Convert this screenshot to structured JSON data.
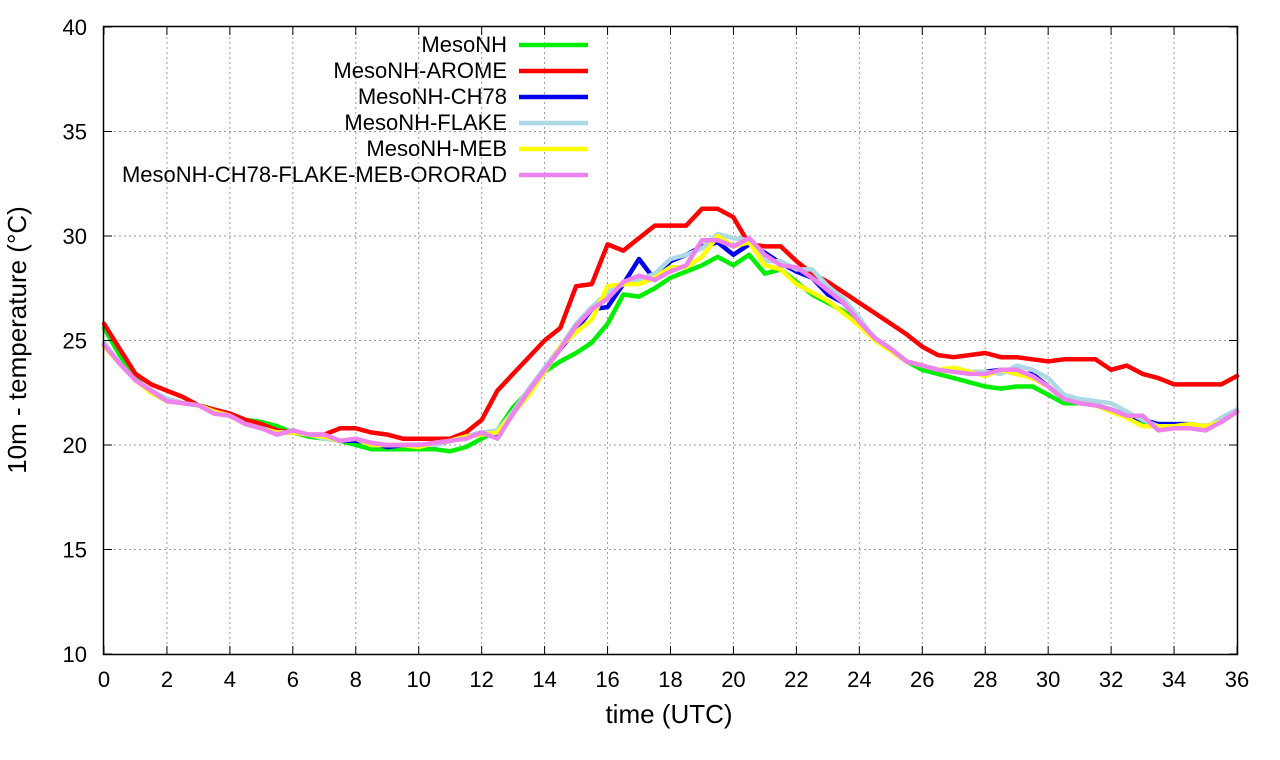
{
  "chart_data": {
    "type": "line",
    "title": "",
    "xlabel": "time (UTC)",
    "ylabel": "10m - temperature (°C)",
    "xlim": [
      0,
      36
    ],
    "ylim": [
      10,
      40
    ],
    "xticks": [
      0,
      2,
      4,
      6,
      8,
      10,
      12,
      14,
      16,
      18,
      20,
      22,
      24,
      26,
      28,
      30,
      32,
      34,
      36
    ],
    "yticks": [
      10,
      15,
      20,
      25,
      30,
      35,
      40
    ],
    "grid": true,
    "legend_position": "top-left",
    "x": [
      0,
      0.5,
      1,
      1.5,
      2,
      2.5,
      3,
      3.5,
      4,
      4.5,
      5,
      5.5,
      6,
      6.5,
      7,
      7.5,
      8,
      8.5,
      9,
      9.5,
      10,
      10.5,
      11,
      11.5,
      12,
      12.5,
      13,
      13.5,
      14,
      14.5,
      15,
      15.5,
      16,
      16.5,
      17,
      17.5,
      18,
      18.5,
      19,
      19.5,
      20,
      20.5,
      21,
      21.5,
      22,
      22.5,
      23,
      23.5,
      24,
      24.5,
      25,
      25.5,
      26,
      26.5,
      27,
      27.5,
      28,
      28.5,
      29,
      29.5,
      30,
      30.5,
      31,
      31.5,
      32,
      32.5,
      33,
      33.5,
      34,
      34.5,
      35,
      35.5,
      36
    ],
    "series": [
      {
        "name": "MesoNH",
        "color": "#00ee00",
        "values": [
          25.6,
          24.3,
          23.2,
          22.5,
          22.1,
          22.0,
          21.9,
          21.7,
          21.5,
          21.2,
          21.1,
          20.9,
          20.6,
          20.4,
          20.3,
          20.2,
          20.0,
          19.8,
          19.8,
          19.8,
          19.8,
          19.8,
          19.7,
          19.9,
          20.3,
          20.7,
          21.8,
          22.6,
          23.5,
          24.0,
          24.4,
          24.9,
          25.8,
          27.2,
          27.1,
          27.5,
          28.0,
          28.3,
          28.6,
          29.0,
          28.6,
          29.1,
          28.2,
          28.4,
          27.8,
          27.2,
          26.8,
          26.4,
          25.8,
          25.0,
          24.5,
          24.0,
          23.6,
          23.4,
          23.2,
          23.0,
          22.8,
          22.7,
          22.8,
          22.8,
          22.4,
          22.0,
          22.0,
          21.9,
          21.7,
          21.3,
          21.1,
          21.0,
          21.0,
          21.0,
          20.8,
          21.1,
          21.6
        ]
      },
      {
        "name": "MesoNH-AROME",
        "color": "#ff0000",
        "values": [
          25.8,
          24.6,
          23.4,
          22.9,
          22.6,
          22.3,
          21.9,
          21.7,
          21.5,
          21.2,
          21.0,
          20.7,
          20.6,
          20.5,
          20.5,
          20.8,
          20.8,
          20.6,
          20.5,
          20.3,
          20.3,
          20.3,
          20.3,
          20.6,
          21.2,
          22.6,
          23.4,
          24.2,
          25.0,
          25.6,
          27.6,
          27.7,
          29.6,
          29.3,
          29.9,
          30.5,
          30.5,
          30.5,
          31.3,
          31.3,
          30.9,
          29.6,
          29.5,
          29.5,
          28.8,
          28.2,
          27.8,
          27.3,
          26.8,
          26.3,
          25.8,
          25.3,
          24.7,
          24.3,
          24.2,
          24.3,
          24.4,
          24.2,
          24.2,
          24.1,
          24.0,
          24.1,
          24.1,
          24.1,
          23.6,
          23.8,
          23.4,
          23.2,
          22.9,
          22.9,
          22.9,
          22.9,
          23.3
        ]
      },
      {
        "name": "MesoNH-CH78",
        "color": "#0000ee",
        "values": [
          24.8,
          23.9,
          23.1,
          22.6,
          22.2,
          22.0,
          21.9,
          21.6,
          21.4,
          21.0,
          20.8,
          20.6,
          20.6,
          20.5,
          20.4,
          20.2,
          20.2,
          20.1,
          19.9,
          20.0,
          20.0,
          20.0,
          20.2,
          20.4,
          20.6,
          20.4,
          21.5,
          22.5,
          23.6,
          24.6,
          25.5,
          26.5,
          26.6,
          27.7,
          28.9,
          27.9,
          28.8,
          29.1,
          29.5,
          29.7,
          29.1,
          29.6,
          29.2,
          28.7,
          28.3,
          28.0,
          27.2,
          26.8,
          25.9,
          25.1,
          24.6,
          24.0,
          23.8,
          23.6,
          23.6,
          23.5,
          23.5,
          23.6,
          23.4,
          23.4,
          22.8,
          22.2,
          22.0,
          21.9,
          21.7,
          21.4,
          21.2,
          21.0,
          21.0,
          21.0,
          20.9,
          21.1,
          21.6
        ]
      },
      {
        "name": "MesoNH-FLAKE",
        "color": "#add8e6",
        "values": [
          24.9,
          23.9,
          23.1,
          22.6,
          22.2,
          22.0,
          21.9,
          21.6,
          21.4,
          21.0,
          20.8,
          20.6,
          20.6,
          20.5,
          20.3,
          20.2,
          20.3,
          20.0,
          20.0,
          20.0,
          20.0,
          20.0,
          20.2,
          20.4,
          20.6,
          20.7,
          21.6,
          22.7,
          23.7,
          24.7,
          25.8,
          26.6,
          27.3,
          27.7,
          27.9,
          28.2,
          28.9,
          29.1,
          29.4,
          30.1,
          29.9,
          29.8,
          28.8,
          28.8,
          28.4,
          28.4,
          27.6,
          27.0,
          26.1,
          25.0,
          24.6,
          24.0,
          23.8,
          23.6,
          23.6,
          23.5,
          23.5,
          23.4,
          23.8,
          23.6,
          23.2,
          22.4,
          22.2,
          22.1,
          22.0,
          21.6,
          21.2,
          20.9,
          20.9,
          20.9,
          20.8,
          21.3,
          21.7
        ]
      },
      {
        "name": "MesoNH-MEB",
        "color": "#ffff00",
        "values": [
          24.7,
          23.9,
          23.1,
          22.5,
          22.1,
          22.0,
          21.9,
          21.6,
          21.4,
          21.0,
          20.8,
          20.6,
          20.6,
          20.5,
          20.4,
          20.2,
          20.3,
          20.0,
          20.0,
          20.0,
          19.9,
          20.1,
          20.2,
          20.4,
          20.5,
          20.6,
          21.5,
          22.4,
          23.5,
          24.7,
          25.4,
          26.0,
          27.6,
          27.7,
          27.7,
          28.0,
          28.5,
          28.5,
          29.0,
          30.0,
          29.5,
          29.7,
          28.6,
          28.4,
          27.7,
          27.3,
          26.9,
          26.3,
          25.7,
          25.0,
          24.5,
          24.0,
          23.8,
          23.6,
          23.7,
          23.5,
          23.3,
          23.6,
          23.4,
          23.2,
          22.8,
          22.2,
          22.0,
          21.9,
          21.6,
          21.3,
          20.9,
          20.9,
          20.9,
          21.0,
          20.9,
          21.1,
          21.6
        ]
      },
      {
        "name": "MesoNH-CH78-FLAKE-MEB-ORORAD",
        "color": "#ee82ee",
        "values": [
          24.8,
          23.9,
          23.1,
          22.6,
          22.1,
          22.0,
          21.9,
          21.5,
          21.4,
          21.0,
          20.8,
          20.5,
          20.7,
          20.5,
          20.5,
          20.2,
          20.3,
          20.1,
          20.0,
          20.0,
          20.0,
          20.1,
          20.2,
          20.3,
          20.6,
          20.3,
          21.5,
          22.6,
          23.6,
          24.6,
          25.7,
          26.5,
          27.0,
          27.8,
          28.1,
          27.9,
          28.3,
          28.6,
          29.8,
          29.8,
          29.5,
          29.9,
          29.1,
          28.6,
          28.5,
          28.0,
          27.4,
          26.8,
          25.9,
          25.1,
          24.6,
          24.0,
          23.8,
          23.6,
          23.5,
          23.4,
          23.4,
          23.6,
          23.6,
          23.3,
          22.8,
          22.2,
          22.0,
          21.9,
          21.7,
          21.4,
          21.4,
          20.7,
          20.8,
          20.8,
          20.7,
          21.1,
          21.6
        ]
      }
    ]
  }
}
